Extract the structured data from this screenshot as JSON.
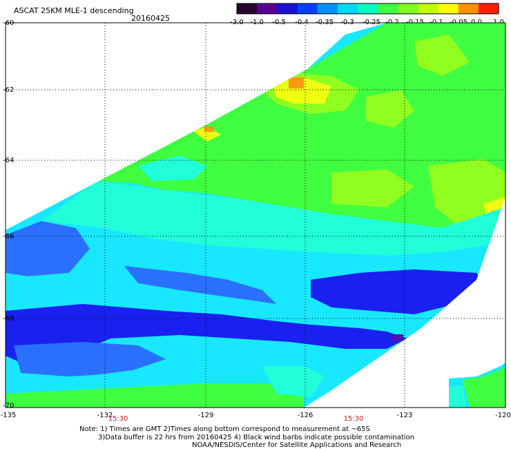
{
  "header": {
    "title": "ASCAT 25KM MLE-1 descending",
    "date": "20160425"
  },
  "colorbar": {
    "tick_labels": [
      "-3.0",
      "-1.0",
      "-0.5",
      "-0.4",
      "-0.35",
      "-0.3",
      "-0.25",
      "-0.2",
      "-0.15",
      "-0.1",
      "-0.05",
      "0.0",
      "1.0"
    ],
    "colors": [
      "#2a0030",
      "#5a0090",
      "#1a10d0",
      "#0040ff",
      "#0090ff",
      "#00d8ff",
      "#00ffc0",
      "#40ff40",
      "#80ff20",
      "#c0ff00",
      "#ffff00",
      "#ff9000",
      "#ff2000"
    ]
  },
  "map": {
    "lat_labels": [
      "-60",
      "-62",
      "-64",
      "-66",
      "-68",
      "-70"
    ],
    "lon_labels": [
      "-135",
      "-132",
      "-129",
      "-126",
      "-123",
      "-120"
    ],
    "time_labels": [
      "15:30",
      "15:30"
    ],
    "field_colors": {
      "blue_dark": "#1a20f0",
      "blue": "#2a70ff",
      "cyan": "#18e8ff",
      "aqua": "#20ffd8",
      "green": "#40ff40",
      "lime": "#90ff20",
      "yellow": "#f0ff10",
      "orange": "#ff9a10",
      "purple": "#5010b0"
    }
  },
  "notes": {
    "line1": "Note: 1) Times are GMT 2)Times along bottom correspond to measurement at ~65S",
    "line2": "3)Data buffer is 22 hrs from 20160425 4) Black wind barbs indicate possible contamination",
    "line3": "NOAA/NESDIS/Center for Satellite Applications and Research"
  }
}
